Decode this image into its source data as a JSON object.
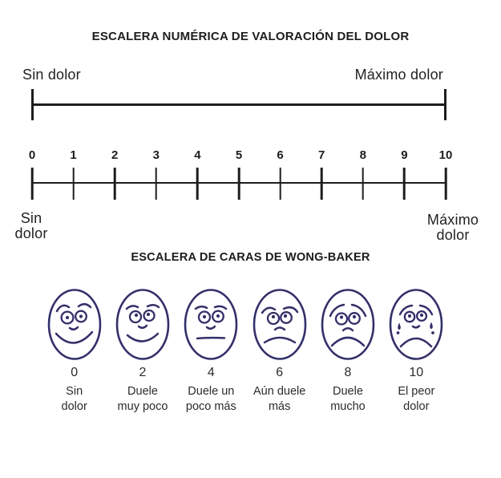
{
  "colors": {
    "ink": "#1d1d1f",
    "face_stroke": "#322e76"
  },
  "numeric_scale": {
    "title": "ESCALERA NUMÉRICA DE VALORACIÓN DEL DOLOR",
    "top_left_label": "Sin dolor",
    "top_right_label": "Máximo dolor",
    "tick_labels": [
      "0",
      "1",
      "2",
      "3",
      "4",
      "5",
      "6",
      "7",
      "8",
      "9",
      "10"
    ],
    "bottom_left_label": "Sin\ndolor",
    "bottom_right_label": "Máximo\ndolor"
  },
  "faces_scale": {
    "title": "ESCALERA DE CARAS DE WONG-BAKER",
    "faces": [
      {
        "value": "0",
        "label": "Sin\ndolor",
        "expression": "no-pain"
      },
      {
        "value": "2",
        "label": "Duele\nmuy poco",
        "expression": "hurts-little"
      },
      {
        "value": "4",
        "label": "Duele un\npoco más",
        "expression": "neutral"
      },
      {
        "value": "6",
        "label": "Aún duele\nmás",
        "expression": "slight-frown"
      },
      {
        "value": "8",
        "label": "Duele\nmucho",
        "expression": "frown"
      },
      {
        "value": "10",
        "label": "El peor\ndolor",
        "expression": "crying"
      }
    ]
  }
}
